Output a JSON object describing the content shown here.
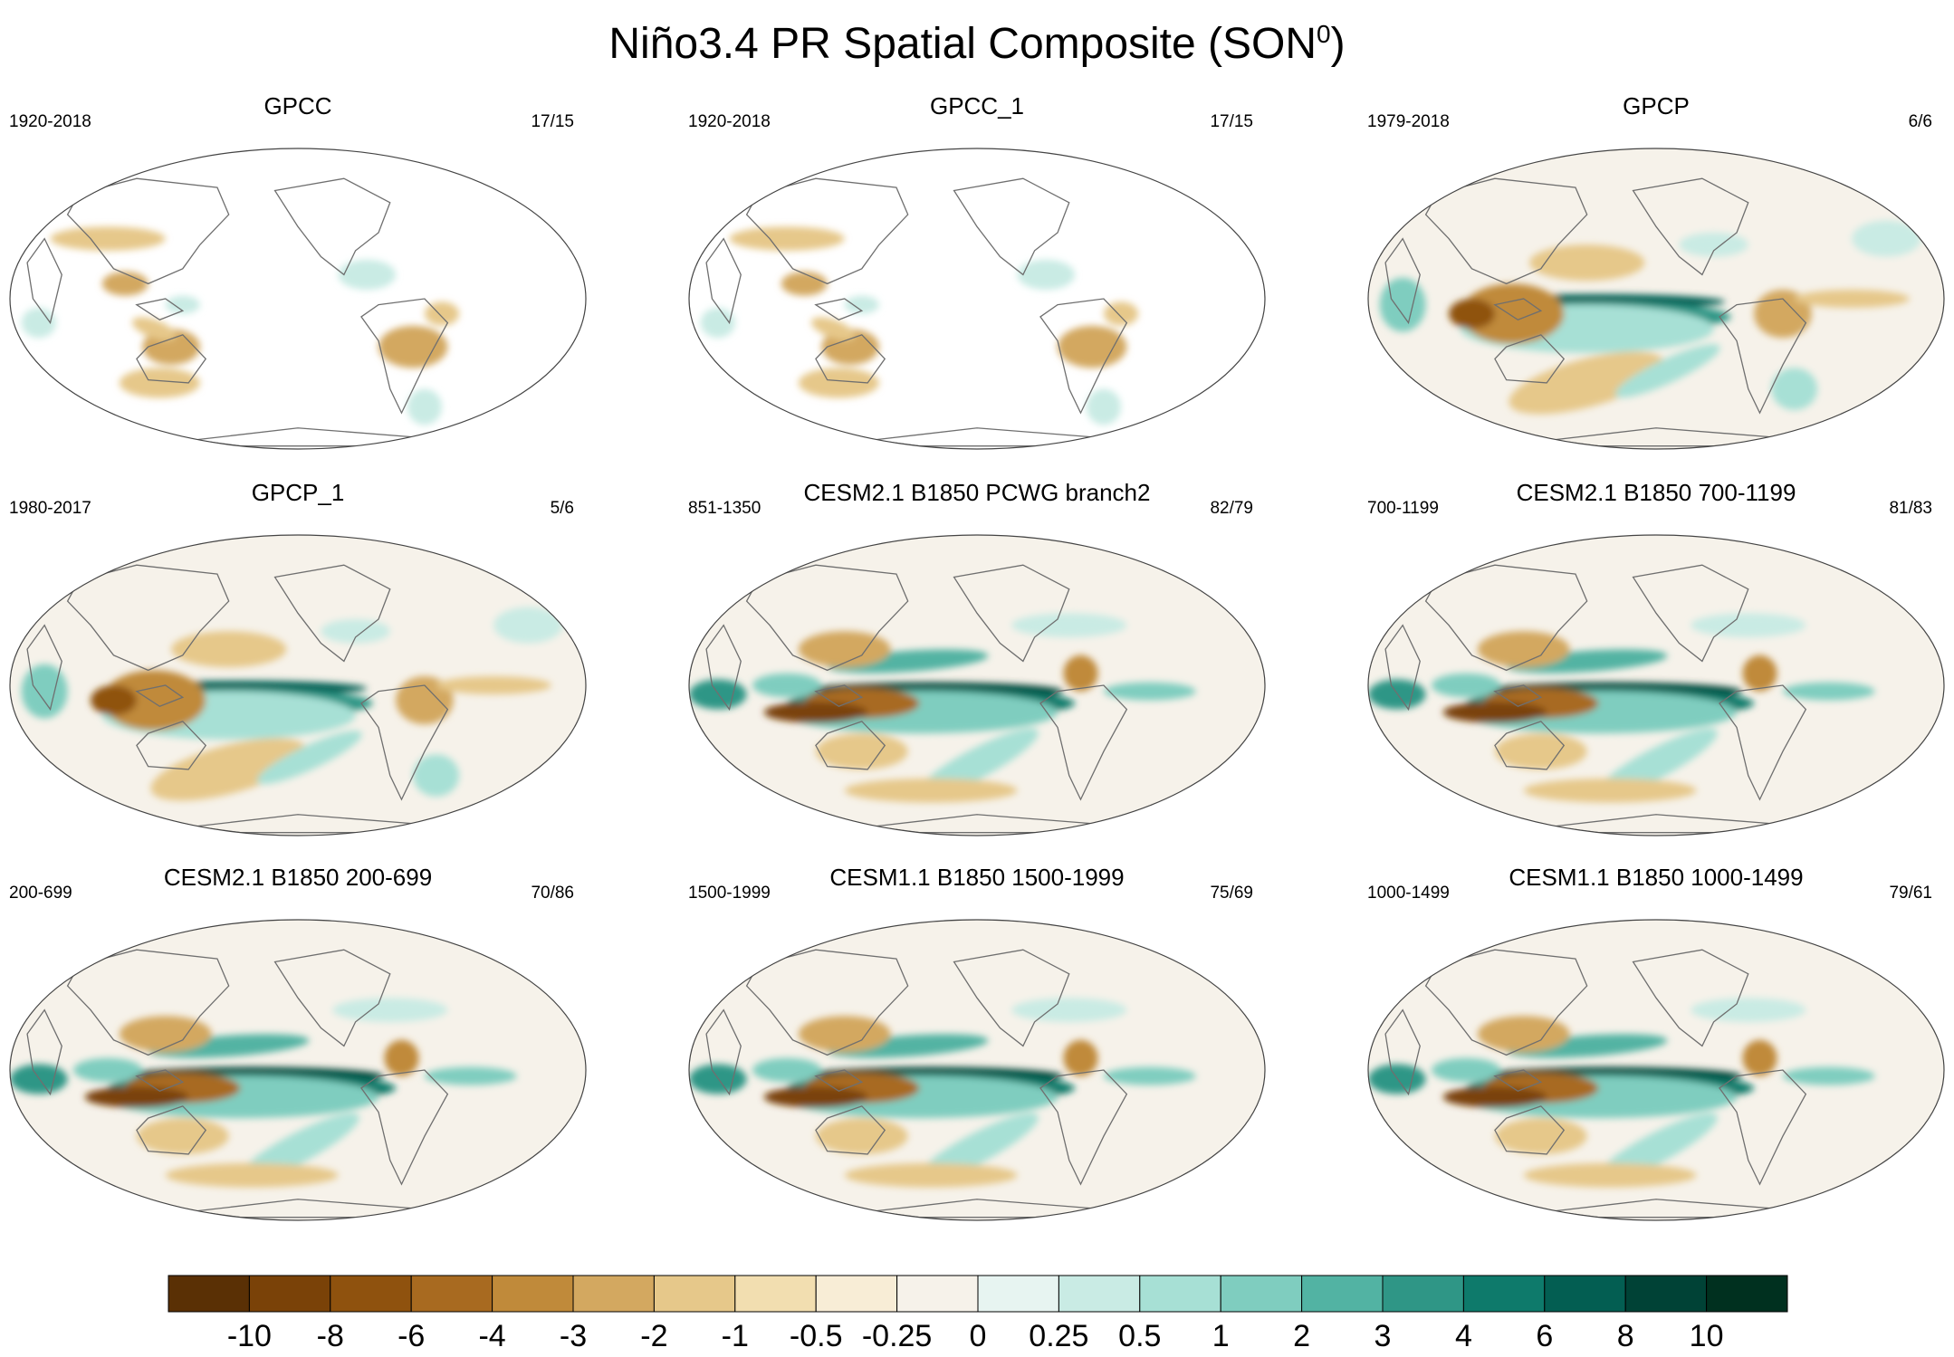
{
  "figure": {
    "title_main": "Niño3.4 PR Spatial Composite (SON",
    "title_sup": "0",
    "title_close": ")"
  },
  "chart_data": {
    "type": "heatmap",
    "projection": "Robinson (Pacific-centered)",
    "variable": "PR",
    "season": "SON",
    "panels": [
      {
        "title": "GPCC",
        "years": "1920-2018",
        "count": "17/15",
        "pattern": "land_only"
      },
      {
        "title": "GPCC_1",
        "years": "1920-2018",
        "count": "17/15",
        "pattern": "land_only"
      },
      {
        "title": "GPCP",
        "years": "1979-2018",
        "count": "6/6",
        "pattern": "obs"
      },
      {
        "title": "GPCP_1",
        "years": "1980-2017",
        "count": "5/6",
        "pattern": "obs"
      },
      {
        "title": "CESM2.1 B1850 PCWG branch2",
        "years": "851-1350",
        "count": "82/79",
        "pattern": "model"
      },
      {
        "title": "CESM2.1 B1850 700-1199",
        "years": "700-1199",
        "count": "81/83",
        "pattern": "model"
      },
      {
        "title": "CESM2.1 B1850 200-699",
        "years": "200-699",
        "count": "70/86",
        "pattern": "model"
      },
      {
        "title": "CESM1.1 B1850 1500-1999",
        "years": "1500-1999",
        "count": "75/69",
        "pattern": "model"
      },
      {
        "title": "CESM1.1 B1850 1000-1499",
        "years": "1000-1499",
        "count": "79/61",
        "pattern": "model"
      }
    ],
    "colorbar": {
      "labels": [
        "-10",
        "-8",
        "-6",
        "-4",
        "-3",
        "-2",
        "-1",
        "-0.5",
        "-0.25",
        "0",
        "0.25",
        "0.5",
        "1",
        "2",
        "3",
        "4",
        "6",
        "8",
        "10"
      ],
      "colors": [
        "#5a3005",
        "#7a4208",
        "#8f520e",
        "#a86a20",
        "#c08a3a",
        "#d3a860",
        "#e6c88a",
        "#f2deb0",
        "#f8edd6",
        "#f6f2ea",
        "#e7f4f1",
        "#c9ebe4",
        "#a7e0d5",
        "#7fcdbf",
        "#52b3a3",
        "#2f9686",
        "#0e7a6b",
        "#035e52",
        "#004236",
        "#00301f"
      ]
    }
  }
}
